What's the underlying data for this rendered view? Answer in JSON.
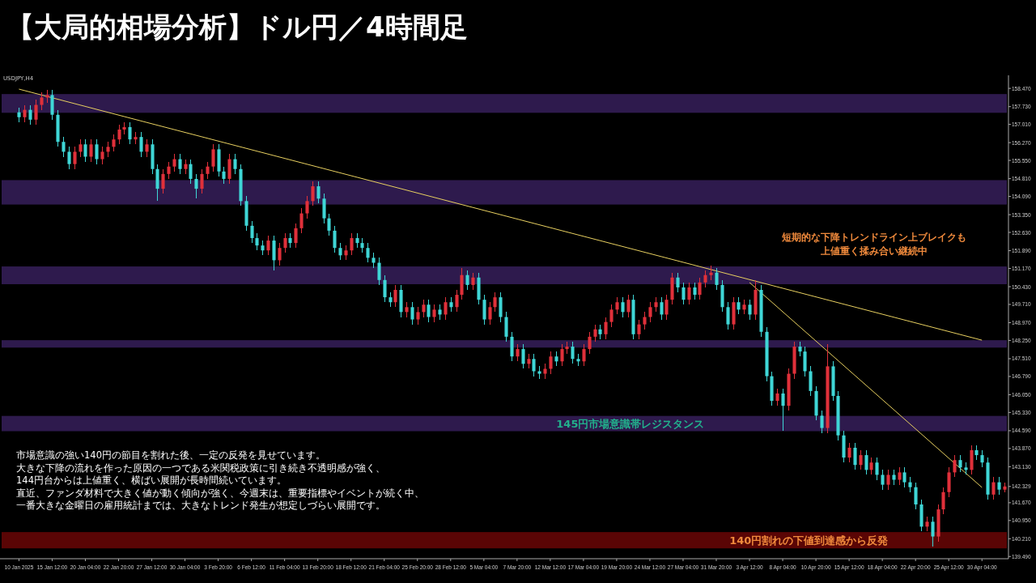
{
  "chart_data": {
    "type": "candlestick",
    "title": "【大局的相場分析】ドル円／4時間足",
    "annotations": [
      "USDJPY,H4",
      "市場意識の強い140円の節目を割れた後、一定の反発を見せています。",
      "大きな下降の流れを作った原因の一つである米関税政策に引き続き不透明感が強く、",
      "144円台からは上値重く、横ばい展開が長時間続いています。",
      "直近、ファンダ材料で大きく値が動く傾向が強く、今週末は、重要指標やイベントが続く中、",
      "一番大きな金曜日の雇用統計までは、大きなトレンド発生が想定しづらい展開です。",
      "短期的な下降トレンドライン上ブレイクも",
      "上値重く揉み合い継続中"
    ],
    "ylim": [
      139.4,
      159.0
    ],
    "categories": [
      "10 Jan 2025",
      null,
      null,
      null,
      null,
      null,
      "15 Jan 12:00",
      null,
      null,
      null,
      null,
      null,
      "20 Jan 04:00",
      null,
      null,
      null,
      null,
      null,
      "22 Jan 20:00",
      null,
      null,
      null,
      null,
      null,
      "27 Jan 12:00",
      null,
      null,
      null,
      null,
      null,
      "30 Jan 04:00",
      null,
      null,
      null,
      null,
      null,
      "3 Feb 20:00",
      null,
      null,
      null,
      null,
      null,
      "6 Feb 12:00",
      null,
      null,
      null,
      null,
      null,
      "11 Feb 04:00",
      null,
      null,
      null,
      null,
      null,
      "13 Feb 20:00",
      null,
      null,
      null,
      null,
      null,
      "18 Feb 12:00",
      null,
      null,
      null,
      null,
      null,
      "21 Feb 04:00",
      null,
      null,
      null,
      null,
      null,
      "25 Feb 20:00",
      null,
      null,
      null,
      null,
      null,
      "28 Feb 12:00",
      null,
      null,
      null,
      null,
      null,
      "5 Mar 04:00",
      null,
      null,
      null,
      null,
      null,
      "7 Mar 20:00",
      null,
      null,
      null,
      null,
      null,
      "12 Mar 12:00",
      null,
      null,
      null,
      null,
      null,
      "17 Mar 04:00",
      null,
      null,
      null,
      null,
      null,
      "19 Mar 20:00",
      null,
      null,
      null,
      null,
      null,
      "24 Mar 12:00",
      null,
      null,
      null,
      null,
      null,
      "27 Mar 04:00",
      null,
      null,
      null,
      null,
      null,
      "31 Mar 20:00",
      null,
      null,
      null,
      null,
      null,
      "3 Apr 12:00",
      null,
      null,
      null,
      null,
      null,
      "8 Apr 04:00",
      null,
      null,
      null,
      null,
      null,
      "10 Apr 20:00",
      null,
      null,
      null,
      null,
      null,
      "15 Apr 12:00",
      null,
      null,
      null,
      null,
      null,
      "18 Apr 04:00",
      null,
      null,
      null,
      null,
      null,
      "22 Apr 20:00",
      null,
      null,
      null,
      null,
      null,
      "25 Apr 12:00",
      null,
      null,
      null,
      null,
      null,
      "30 Apr 04:00",
      null,
      null,
      null,
      null
    ],
    "yticks": [
      {
        "value": 158.47,
        "label": "158.470"
      },
      {
        "value": 157.73,
        "label": "157.730"
      },
      {
        "value": 157.01,
        "label": "157.010"
      },
      {
        "value": 156.27,
        "label": "156.270"
      },
      {
        "value": 155.55,
        "label": "155.550"
      },
      {
        "value": 154.81,
        "label": "154.810"
      },
      {
        "value": 154.09,
        "label": "154.090"
      },
      {
        "value": 153.35,
        "label": "153.350"
      },
      {
        "value": 152.63,
        "label": "152.630"
      },
      {
        "value": 151.89,
        "label": "151.890"
      },
      {
        "value": 151.17,
        "label": "151.170"
      },
      {
        "value": 150.43,
        "label": "150.430"
      },
      {
        "value": 149.71,
        "label": "149.710"
      },
      {
        "value": 148.97,
        "label": "148.970"
      },
      {
        "value": 148.25,
        "label": "148.250"
      },
      {
        "value": 147.51,
        "label": "147.510"
      },
      {
        "value": 146.79,
        "label": "146.790"
      },
      {
        "value": 146.05,
        "label": "146.050"
      },
      {
        "value": 145.33,
        "label": "145.330"
      },
      {
        "value": 144.59,
        "label": "144.590"
      },
      {
        "value": 143.87,
        "label": "143.870"
      },
      {
        "value": 143.13,
        "label": "143.130"
      },
      142.329,
      {
        "value": 141.67,
        "label": "141.670"
      },
      {
        "value": 140.95,
        "label": "140.950"
      },
      {
        "value": 140.21,
        "label": "140.210"
      },
      {
        "value": 139.49,
        "label": "139.490"
      }
    ],
    "bands": [
      {
        "axis": "y",
        "from": 157.48,
        "to": 158.24,
        "color": "#2e1a4d"
      },
      {
        "axis": "y",
        "from": 153.76,
        "to": 154.75,
        "color": "#2e1a4d"
      },
      {
        "axis": "y",
        "from": 150.53,
        "to": 151.25,
        "color": "#2e1a4d"
      },
      {
        "axis": "y",
        "from": 147.96,
        "to": 148.26,
        "color": "#2e1a4d"
      },
      {
        "axis": "y",
        "from": 144.57,
        "to": 145.19,
        "color": "#2e1a4d",
        "label": "145円市場意識帯レジスタンス"
      },
      {
        "axis": "y",
        "from": 139.82,
        "to": 140.48,
        "color": "#5a0505",
        "label": "140円割れの下値到達感から反発"
      }
    ],
    "series": [
      {
        "type": "line",
        "color": "#e8d060",
        "x": [
          "10 Jan 2025",
          "30 Apr 04:00"
        ],
        "values": [
          158.44,
          148.26
        ]
      },
      {
        "type": "line",
        "color": "#e8d060",
        "x": [
          "3 Apr 12:00",
          "30 Apr 04:00"
        ],
        "values": [
          150.6,
          142.29
        ]
      }
    ],
    "ohlc": [
      [
        157.5,
        157.7,
        157.1,
        157.3
      ],
      [
        157.3,
        157.8,
        157.1,
        157.6
      ],
      [
        157.6,
        157.8,
        157.0,
        157.2
      ],
      [
        157.2,
        158.0,
        157.0,
        157.8
      ],
      [
        157.8,
        158.3,
        157.6,
        158.1
      ],
      [
        158.1,
        158.4,
        157.9,
        158.2
      ],
      [
        158.2,
        158.4,
        157.2,
        157.4
      ],
      [
        157.4,
        157.6,
        156.1,
        156.3
      ],
      [
        156.3,
        156.5,
        155.7,
        155.9
      ],
      [
        155.9,
        156.1,
        155.2,
        155.4
      ],
      [
        155.4,
        156.1,
        155.2,
        155.9
      ],
      [
        155.9,
        156.4,
        155.7,
        156.2
      ],
      [
        156.2,
        156.4,
        155.5,
        155.7
      ],
      [
        155.7,
        156.4,
        155.5,
        156.2
      ],
      [
        156.2,
        156.4,
        155.4,
        155.6
      ],
      [
        155.6,
        156.1,
        155.4,
        155.9
      ],
      [
        155.9,
        156.3,
        155.7,
        156.1
      ],
      [
        156.1,
        156.6,
        155.9,
        156.4
      ],
      [
        156.4,
        157.0,
        156.2,
        156.8
      ],
      [
        156.8,
        157.1,
        156.6,
        156.9
      ],
      [
        156.9,
        157.1,
        156.2,
        156.4
      ],
      [
        156.4,
        156.7,
        156.2,
        156.5
      ],
      [
        156.5,
        156.7,
        155.7,
        155.9
      ],
      [
        155.9,
        156.4,
        155.7,
        156.2
      ],
      [
        156.2,
        156.4,
        155.0,
        155.2
      ],
      [
        155.2,
        155.4,
        153.9,
        154.4
      ],
      [
        154.4,
        155.2,
        154.2,
        155.0
      ],
      [
        155.0,
        155.5,
        154.8,
        155.3
      ],
      [
        155.3,
        155.8,
        155.1,
        155.6
      ],
      [
        155.6,
        155.8,
        155.0,
        155.2
      ],
      [
        155.2,
        155.6,
        155.0,
        155.4
      ],
      [
        155.4,
        155.6,
        154.6,
        154.8
      ],
      [
        154.8,
        155.0,
        154.0,
        154.4
      ],
      [
        154.4,
        155.2,
        154.2,
        155.0
      ],
      [
        155.0,
        155.5,
        154.8,
        155.3
      ],
      [
        155.3,
        156.2,
        155.1,
        156.0
      ],
      [
        156.0,
        156.2,
        154.9,
        155.1
      ],
      [
        155.1,
        155.3,
        154.6,
        154.8
      ],
      [
        154.8,
        155.8,
        154.6,
        155.6
      ],
      [
        155.6,
        155.8,
        155.0,
        155.2
      ],
      [
        155.2,
        155.4,
        153.7,
        153.9
      ],
      [
        153.9,
        154.1,
        152.7,
        152.9
      ],
      [
        152.9,
        153.1,
        152.2,
        152.4
      ],
      [
        152.4,
        152.6,
        151.9,
        152.1
      ],
      [
        152.1,
        152.3,
        151.7,
        151.9
      ],
      [
        151.9,
        152.5,
        151.7,
        152.3
      ],
      [
        152.3,
        152.5,
        151.1,
        151.5
      ],
      [
        151.5,
        152.2,
        151.3,
        152.0
      ],
      [
        152.0,
        152.6,
        151.8,
        152.4
      ],
      [
        152.4,
        152.6,
        152.0,
        152.2
      ],
      [
        152.2,
        153.0,
        152.0,
        152.8
      ],
      [
        152.8,
        153.6,
        152.6,
        153.4
      ],
      [
        153.4,
        154.1,
        153.2,
        153.9
      ],
      [
        153.9,
        154.7,
        153.7,
        154.5
      ],
      [
        154.5,
        154.7,
        153.8,
        154.0
      ],
      [
        154.0,
        154.2,
        153.0,
        153.2
      ],
      [
        153.2,
        153.4,
        152.5,
        152.7
      ],
      [
        152.7,
        152.9,
        151.8,
        152.0
      ],
      [
        152.0,
        152.2,
        151.5,
        151.7
      ],
      [
        151.7,
        152.1,
        151.5,
        151.9
      ],
      [
        151.9,
        152.6,
        151.7,
        152.4
      ],
      [
        152.4,
        152.6,
        152.0,
        152.2
      ],
      [
        152.2,
        152.4,
        151.8,
        152.0
      ],
      [
        152.0,
        152.2,
        151.4,
        151.6
      ],
      [
        151.6,
        151.8,
        151.2,
        151.4
      ],
      [
        151.4,
        151.6,
        150.5,
        150.7
      ],
      [
        150.7,
        150.9,
        149.8,
        150.0
      ],
      [
        150.0,
        150.2,
        149.6,
        149.8
      ],
      [
        149.8,
        150.5,
        149.6,
        150.3
      ],
      [
        150.3,
        150.5,
        149.2,
        149.4
      ],
      [
        149.4,
        149.8,
        149.2,
        149.6
      ],
      [
        149.6,
        149.8,
        148.9,
        149.1
      ],
      [
        149.1,
        149.6,
        148.9,
        149.4
      ],
      [
        149.4,
        149.9,
        149.2,
        149.7
      ],
      [
        149.7,
        149.9,
        149.0,
        149.2
      ],
      [
        149.2,
        149.7,
        149.0,
        149.5
      ],
      [
        149.5,
        149.7,
        149.1,
        149.3
      ],
      [
        149.3,
        150.0,
        149.1,
        149.8
      ],
      [
        149.8,
        150.0,
        149.4,
        149.6
      ],
      [
        149.6,
        150.3,
        149.4,
        150.1
      ],
      [
        150.1,
        151.2,
        149.9,
        150.9
      ],
      [
        150.9,
        151.1,
        150.3,
        150.5
      ],
      [
        150.5,
        151.0,
        150.3,
        150.8
      ],
      [
        150.8,
        151.0,
        149.7,
        149.9
      ],
      [
        149.9,
        150.1,
        148.9,
        149.1
      ],
      [
        149.1,
        149.8,
        148.9,
        149.6
      ],
      [
        149.6,
        150.2,
        149.4,
        150.0
      ],
      [
        150.0,
        150.2,
        149.0,
        149.2
      ],
      [
        149.2,
        149.4,
        148.2,
        148.4
      ],
      [
        148.4,
        148.6,
        147.4,
        147.6
      ],
      [
        147.6,
        148.1,
        147.4,
        147.9
      ],
      [
        147.9,
        148.1,
        147.1,
        147.3
      ],
      [
        147.3,
        147.7,
        147.1,
        147.5
      ],
      [
        147.5,
        147.7,
        146.8,
        147.0
      ],
      [
        147.0,
        147.2,
        146.7,
        146.9
      ],
      [
        146.9,
        147.3,
        146.7,
        147.1
      ],
      [
        147.1,
        147.8,
        146.9,
        147.6
      ],
      [
        147.6,
        147.8,
        147.2,
        147.4
      ],
      [
        147.4,
        148.1,
        147.2,
        147.9
      ],
      [
        147.9,
        148.2,
        147.7,
        148.0
      ],
      [
        148.0,
        148.2,
        147.3,
        147.5
      ],
      [
        147.5,
        147.7,
        147.2,
        147.4
      ],
      [
        147.4,
        148.1,
        147.2,
        147.9
      ],
      [
        147.9,
        148.6,
        147.7,
        148.4
      ],
      [
        148.4,
        148.9,
        148.2,
        148.7
      ],
      [
        148.7,
        148.9,
        148.3,
        148.5
      ],
      [
        148.5,
        149.2,
        148.3,
        149.0
      ],
      [
        149.0,
        149.7,
        148.8,
        149.5
      ],
      [
        149.5,
        150.0,
        149.3,
        149.8
      ],
      [
        149.8,
        150.0,
        149.2,
        149.4
      ],
      [
        149.4,
        150.1,
        149.2,
        149.9
      ],
      [
        149.9,
        150.1,
        148.3,
        148.5
      ],
      [
        148.5,
        149.1,
        148.3,
        148.9
      ],
      [
        148.9,
        149.4,
        148.7,
        149.2
      ],
      [
        149.2,
        149.8,
        149.0,
        149.6
      ],
      [
        149.6,
        150.0,
        149.4,
        149.8
      ],
      [
        149.8,
        150.0,
        149.1,
        149.3
      ],
      [
        149.3,
        150.1,
        149.1,
        149.9
      ],
      [
        149.9,
        151.0,
        149.7,
        150.8
      ],
      [
        150.8,
        151.0,
        150.2,
        150.4
      ],
      [
        150.4,
        150.6,
        149.7,
        149.9
      ],
      [
        149.9,
        150.6,
        149.7,
        150.4
      ],
      [
        150.4,
        150.6,
        149.9,
        150.1
      ],
      [
        150.1,
        150.8,
        149.9,
        150.6
      ],
      [
        150.6,
        151.1,
        150.4,
        150.9
      ],
      [
        150.9,
        151.3,
        150.7,
        151.0
      ],
      [
        151.0,
        151.2,
        150.3,
        150.5
      ],
      [
        150.5,
        150.7,
        149.4,
        149.6
      ],
      [
        149.6,
        149.8,
        148.7,
        148.9
      ],
      [
        148.9,
        150.0,
        148.7,
        149.8
      ],
      [
        149.8,
        150.0,
        149.3,
        149.5
      ],
      [
        149.5,
        149.9,
        149.3,
        149.7
      ],
      [
        149.7,
        149.9,
        149.1,
        149.3
      ],
      [
        149.3,
        150.7,
        149.1,
        150.3
      ],
      [
        150.3,
        150.5,
        148.4,
        148.6
      ],
      [
        148.6,
        148.8,
        146.6,
        146.8
      ],
      [
        146.8,
        147.0,
        145.6,
        145.8
      ],
      [
        145.8,
        146.3,
        145.6,
        146.1
      ],
      [
        146.1,
        146.3,
        144.6,
        145.6
      ],
      [
        145.6,
        147.1,
        145.4,
        146.9
      ],
      [
        146.9,
        148.2,
        146.7,
        148.0
      ],
      [
        148.0,
        148.2,
        147.6,
        147.8
      ],
      [
        147.8,
        148.0,
        146.8,
        147.0
      ],
      [
        147.0,
        147.2,
        146.0,
        146.2
      ],
      [
        146.2,
        146.4,
        145.0,
        145.2
      ],
      [
        145.2,
        145.4,
        144.5,
        144.7
      ],
      [
        144.7,
        148.1,
        144.5,
        147.2
      ],
      [
        147.2,
        147.4,
        145.8,
        146.0
      ],
      [
        146.0,
        146.2,
        144.2,
        144.4
      ],
      [
        144.4,
        144.6,
        143.3,
        143.5
      ],
      [
        143.5,
        144.1,
        143.3,
        143.9
      ],
      [
        143.9,
        144.1,
        143.0,
        143.2
      ],
      [
        143.2,
        143.8,
        143.0,
        143.6
      ],
      [
        143.6,
        143.8,
        142.8,
        143.0
      ],
      [
        143.0,
        143.5,
        142.8,
        143.3
      ],
      [
        143.3,
        143.5,
        142.6,
        142.8
      ],
      [
        142.8,
        143.0,
        142.2,
        142.4
      ],
      [
        142.4,
        143.0,
        142.2,
        142.8
      ],
      [
        142.8,
        143.0,
        142.4,
        142.6
      ],
      [
        142.6,
        143.1,
        142.4,
        142.9
      ],
      [
        142.9,
        143.1,
        142.3,
        142.5
      ],
      [
        142.5,
        142.7,
        142.1,
        142.3
      ],
      [
        142.3,
        142.5,
        141.4,
        141.6
      ],
      [
        141.6,
        141.8,
        140.5,
        140.7
      ],
      [
        140.7,
        141.1,
        140.5,
        140.9
      ],
      [
        140.9,
        141.1,
        139.9,
        140.3
      ],
      [
        140.3,
        141.6,
        140.1,
        141.4
      ],
      [
        141.4,
        142.3,
        141.2,
        142.1
      ],
      [
        142.1,
        143.1,
        141.9,
        142.9
      ],
      [
        142.9,
        143.6,
        142.7,
        143.4
      ],
      [
        143.4,
        143.6,
        142.9,
        143.1
      ],
      [
        143.1,
        143.3,
        142.8,
        143.0
      ],
      [
        143.0,
        144.0,
        142.8,
        143.8
      ],
      [
        143.8,
        144.0,
        143.4,
        143.6
      ],
      [
        143.6,
        143.8,
        143.1,
        143.3
      ],
      [
        143.3,
        143.5,
        141.8,
        142.0
      ],
      [
        142.0,
        142.7,
        141.8,
        142.5
      ],
      [
        142.5,
        142.7,
        142.0,
        142.2
      ],
      [
        142.2,
        142.5,
        142.1,
        142.33
      ]
    ],
    "colors": [
      "#3fd6d6",
      "#e0303a",
      "#3fd6d6",
      "#e0303a",
      "#e0303a",
      "#e0303a",
      "#3fd6d6",
      "#3fd6d6",
      "#3fd6d6",
      "#3fd6d6",
      "#e0303a",
      "#e0303a",
      "#3fd6d6",
      "#e0303a",
      "#3fd6d6",
      "#e0303a",
      "#e0303a",
      "#e0303a",
      "#e0303a",
      "#e0303a",
      "#3fd6d6",
      "#e0303a",
      "#3fd6d6",
      "#e0303a",
      "#3fd6d6",
      "#3fd6d6",
      "#e0303a",
      "#e0303a",
      "#e0303a",
      "#3fd6d6",
      "#e0303a",
      "#3fd6d6",
      "#3fd6d6",
      "#e0303a",
      "#e0303a",
      "#e0303a",
      "#3fd6d6",
      "#3fd6d6",
      "#e0303a",
      "#3fd6d6",
      "#3fd6d6",
      "#3fd6d6",
      "#3fd6d6",
      "#3fd6d6",
      "#3fd6d6",
      "#e0303a",
      "#3fd6d6",
      "#e0303a",
      "#e0303a",
      "#3fd6d6",
      "#e0303a",
      "#e0303a",
      "#e0303a",
      "#e0303a",
      "#3fd6d6",
      "#3fd6d6",
      "#3fd6d6",
      "#3fd6d6",
      "#3fd6d6",
      "#e0303a",
      "#e0303a",
      "#3fd6d6",
      "#3fd6d6",
      "#3fd6d6",
      "#3fd6d6",
      "#3fd6d6",
      "#3fd6d6",
      "#3fd6d6",
      "#e0303a",
      "#3fd6d6",
      "#e0303a",
      "#3fd6d6",
      "#e0303a",
      "#e0303a",
      "#3fd6d6",
      "#e0303a",
      "#3fd6d6",
      "#e0303a",
      "#3fd6d6",
      "#e0303a",
      "#e0303a",
      "#3fd6d6",
      "#e0303a",
      "#3fd6d6",
      "#3fd6d6",
      "#e0303a",
      "#e0303a",
      "#3fd6d6",
      "#3fd6d6",
      "#3fd6d6",
      "#e0303a",
      "#3fd6d6",
      "#e0303a",
      "#3fd6d6",
      "#3fd6d6",
      "#e0303a",
      "#e0303a",
      "#3fd6d6",
      "#e0303a",
      "#e0303a",
      "#3fd6d6",
      "#3fd6d6",
      "#e0303a",
      "#e0303a",
      "#e0303a",
      "#3fd6d6",
      "#e0303a",
      "#e0303a",
      "#e0303a",
      "#3fd6d6",
      "#e0303a",
      "#3fd6d6",
      "#e0303a",
      "#e0303a",
      "#e0303a",
      "#e0303a",
      "#3fd6d6",
      "#e0303a",
      "#e0303a",
      "#3fd6d6",
      "#3fd6d6",
      "#e0303a",
      "#3fd6d6",
      "#e0303a",
      "#e0303a",
      "#e0303a",
      "#3fd6d6",
      "#3fd6d6",
      "#3fd6d6",
      "#e0303a",
      "#3fd6d6",
      "#e0303a",
      "#3fd6d6",
      "#e0303a",
      "#3fd6d6",
      "#3fd6d6",
      "#3fd6d6",
      "#e0303a",
      "#3fd6d6",
      "#e0303a",
      "#e0303a",
      "#3fd6d6",
      "#3fd6d6",
      "#3fd6d6",
      "#3fd6d6",
      "#3fd6d6",
      "#e0303a",
      "#3fd6d6",
      "#3fd6d6",
      "#3fd6d6",
      "#e0303a",
      "#3fd6d6",
      "#e0303a",
      "#3fd6d6",
      "#e0303a",
      "#3fd6d6",
      "#3fd6d6",
      "#e0303a",
      "#3fd6d6",
      "#e0303a",
      "#3fd6d6",
      "#3fd6d6",
      "#3fd6d6",
      "#3fd6d6",
      "#e0303a",
      "#3fd6d6",
      "#e0303a",
      "#e0303a",
      "#e0303a",
      "#e0303a",
      "#3fd6d6",
      "#3fd6d6",
      "#e0303a",
      "#3fd6d6",
      "#3fd6d6",
      "#3fd6d6",
      "#e0303a",
      "#3fd6d6",
      "#e0303a"
    ]
  }
}
